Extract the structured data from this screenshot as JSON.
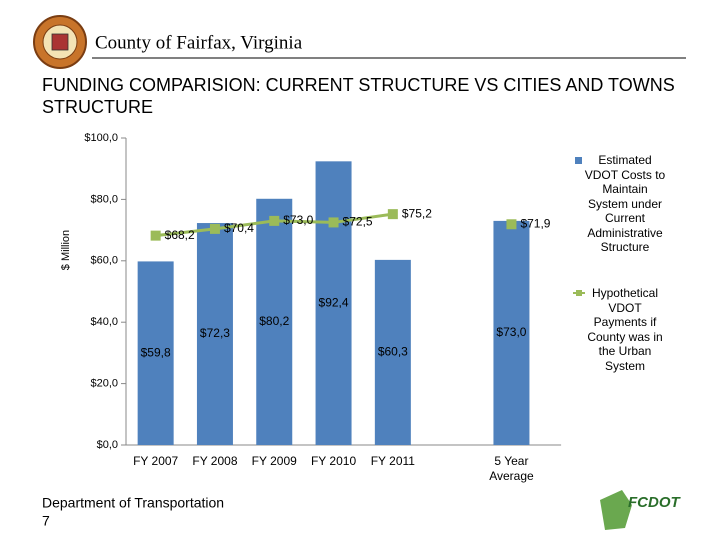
{
  "header": {
    "org": "County of Fairfax, Virginia"
  },
  "chart_data": {
    "type": "bar",
    "title": "FUNDING COMPARISION: CURRENT STRUCTURE VS CITIES AND TOWNS STRUCTURE",
    "y_label": "$ Million",
    "categories": [
      "FY 2007",
      "FY 2008",
      "FY 2009",
      "FY 2010",
      "FY 2011",
      null,
      "5 Year Average"
    ],
    "series": [
      {
        "name": "Estimated VDOT Costs to Maintain System under Current Administrative Structure",
        "type": "bar",
        "color": "#4f81bd",
        "values": [
          59.8,
          72.3,
          80.2,
          92.4,
          60.3,
          null,
          73.0
        ],
        "value_labels": [
          "$59,8",
          "$72,3",
          "$80,2",
          "$92,4",
          "$60,3",
          null,
          "$73,0"
        ]
      },
      {
        "name": "Hypothetical VDOT Payments if County was in the Urban System",
        "type": "line",
        "color": "#9bbb59",
        "values": [
          68.2,
          70.4,
          73.0,
          72.5,
          75.2,
          null,
          71.9
        ],
        "value_labels": [
          "$68,2",
          "$70,4",
          "$73,0",
          "$72,5",
          "$75,2",
          null,
          "$71,9"
        ]
      }
    ],
    "ylim": [
      0,
      100
    ],
    "yticks": [
      {
        "value": 0,
        "label": "$0,0"
      },
      {
        "value": 20,
        "label": "$20,0"
      },
      {
        "value": 40,
        "label": "$40,0"
      },
      {
        "value": 60,
        "label": "$60,0"
      },
      {
        "value": 80,
        "label": "$80,0"
      },
      {
        "value": 100,
        "label": "$100,0"
      }
    ],
    "legend": "right"
  },
  "footer": {
    "department": "Department of Transportation",
    "page": "7",
    "logo": "FCDOT"
  }
}
